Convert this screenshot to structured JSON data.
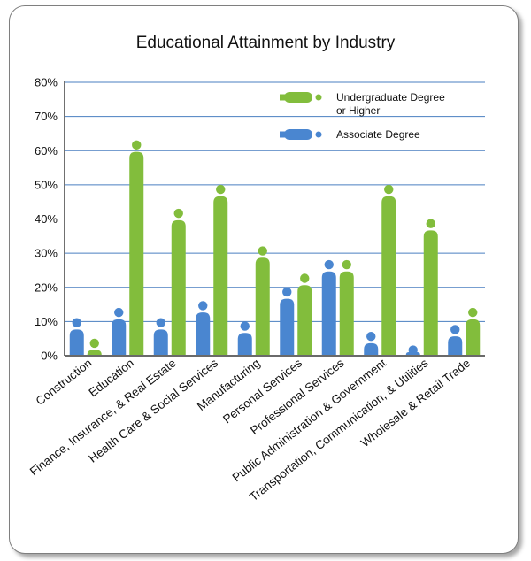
{
  "chart_data": {
    "type": "bar",
    "title": "Educational Attainment by Industry",
    "xlabel": "",
    "ylabel": "",
    "ylim": [
      0,
      80
    ],
    "yticks": [
      "0%",
      "10%",
      "20%",
      "30%",
      "40%",
      "50%",
      "60%",
      "70%",
      "80%"
    ],
    "grid": true,
    "legend_position": "top-right",
    "categories": [
      "Construction",
      "Education",
      "Finance, Insurance, & Real Estate",
      "Health Care & Social Services",
      "Manufacturing",
      "Personal Services",
      "Professional Services",
      "Public Administration & Government",
      "Transportation, Communication, & Utilities",
      "Wholesale & Retail Trade"
    ],
    "series": [
      {
        "name": "Associate Degree",
        "color": "#4a86d0",
        "values": [
          11,
          14,
          11,
          16,
          10,
          20,
          28,
          7,
          3,
          9
        ]
      },
      {
        "name": "Undergraduate Degree or Higher",
        "color": "#82bd3c",
        "values": [
          5,
          63,
          43,
          50,
          32,
          24,
          28,
          50,
          40,
          14
        ]
      }
    ],
    "legend": [
      {
        "line1": "Undergraduate Degree",
        "line2": "or Higher",
        "color": "#82bd3c"
      },
      {
        "line1": "Associate Degree",
        "line2": "",
        "color": "#4a86d0"
      }
    ]
  }
}
